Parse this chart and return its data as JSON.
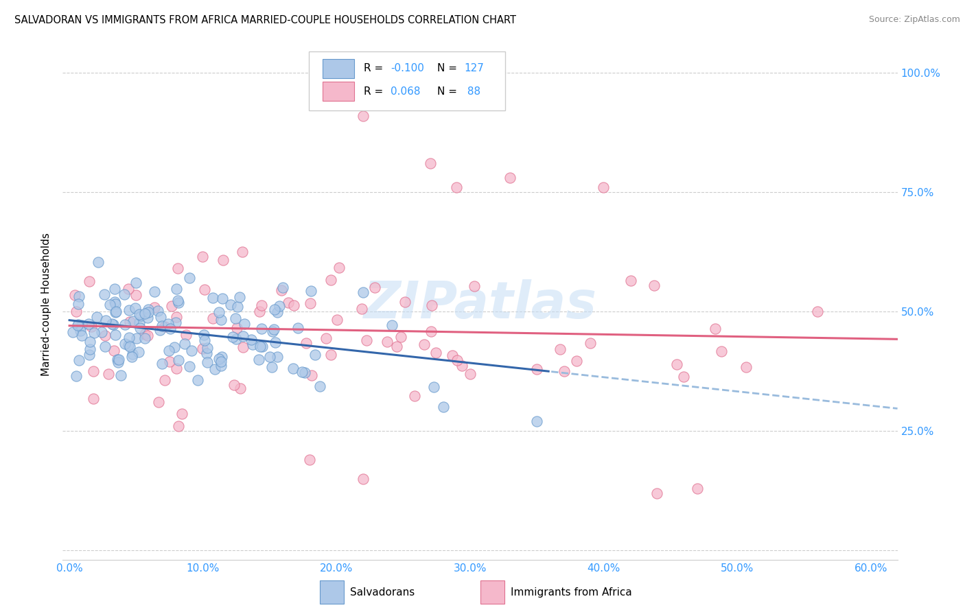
{
  "title": "SALVADORAN VS IMMIGRANTS FROM AFRICA MARRIED-COUPLE HOUSEHOLDS CORRELATION CHART",
  "source": "Source: ZipAtlas.com",
  "xlabel_ticks": [
    "0.0%",
    "10.0%",
    "20.0%",
    "30.0%",
    "40.0%",
    "50.0%",
    "60.0%"
  ],
  "xlabel_vals": [
    0.0,
    0.1,
    0.2,
    0.3,
    0.4,
    0.5,
    0.6
  ],
  "ylabel_ticks": [
    "",
    "",
    "50.0%",
    "75.0%",
    "100.0%"
  ],
  "ylabel_vals": [
    0.0,
    0.25,
    0.5,
    0.75,
    1.0
  ],
  "right_ylabel_ticks": [
    "",
    "25.0%",
    "50.0%",
    "75.0%",
    "100.0%"
  ],
  "xlim": [
    -0.005,
    0.62
  ],
  "ylim": [
    -0.02,
    1.05
  ],
  "salvadoran_color": "#adc8e8",
  "africa_color": "#f5b8cb",
  "salvadoran_edge": "#6699cc",
  "africa_edge": "#e07090",
  "line_blue": "#3366aa",
  "line_pink": "#e06080",
  "line_dash_color": "#99bbdd",
  "R_salvadoran": -0.1,
  "N_salvadoran": 127,
  "R_africa": 0.068,
  "N_africa": 88,
  "legend_label_1": "Salvadorans",
  "legend_label_2": "Immigrants from Africa",
  "ylabel": "Married-couple Households",
  "watermark": "ZIPatlas",
  "title_fontsize": 10.5,
  "tick_color": "#3399ff",
  "grid_color": "#cccccc",
  "scatter_size": 120
}
